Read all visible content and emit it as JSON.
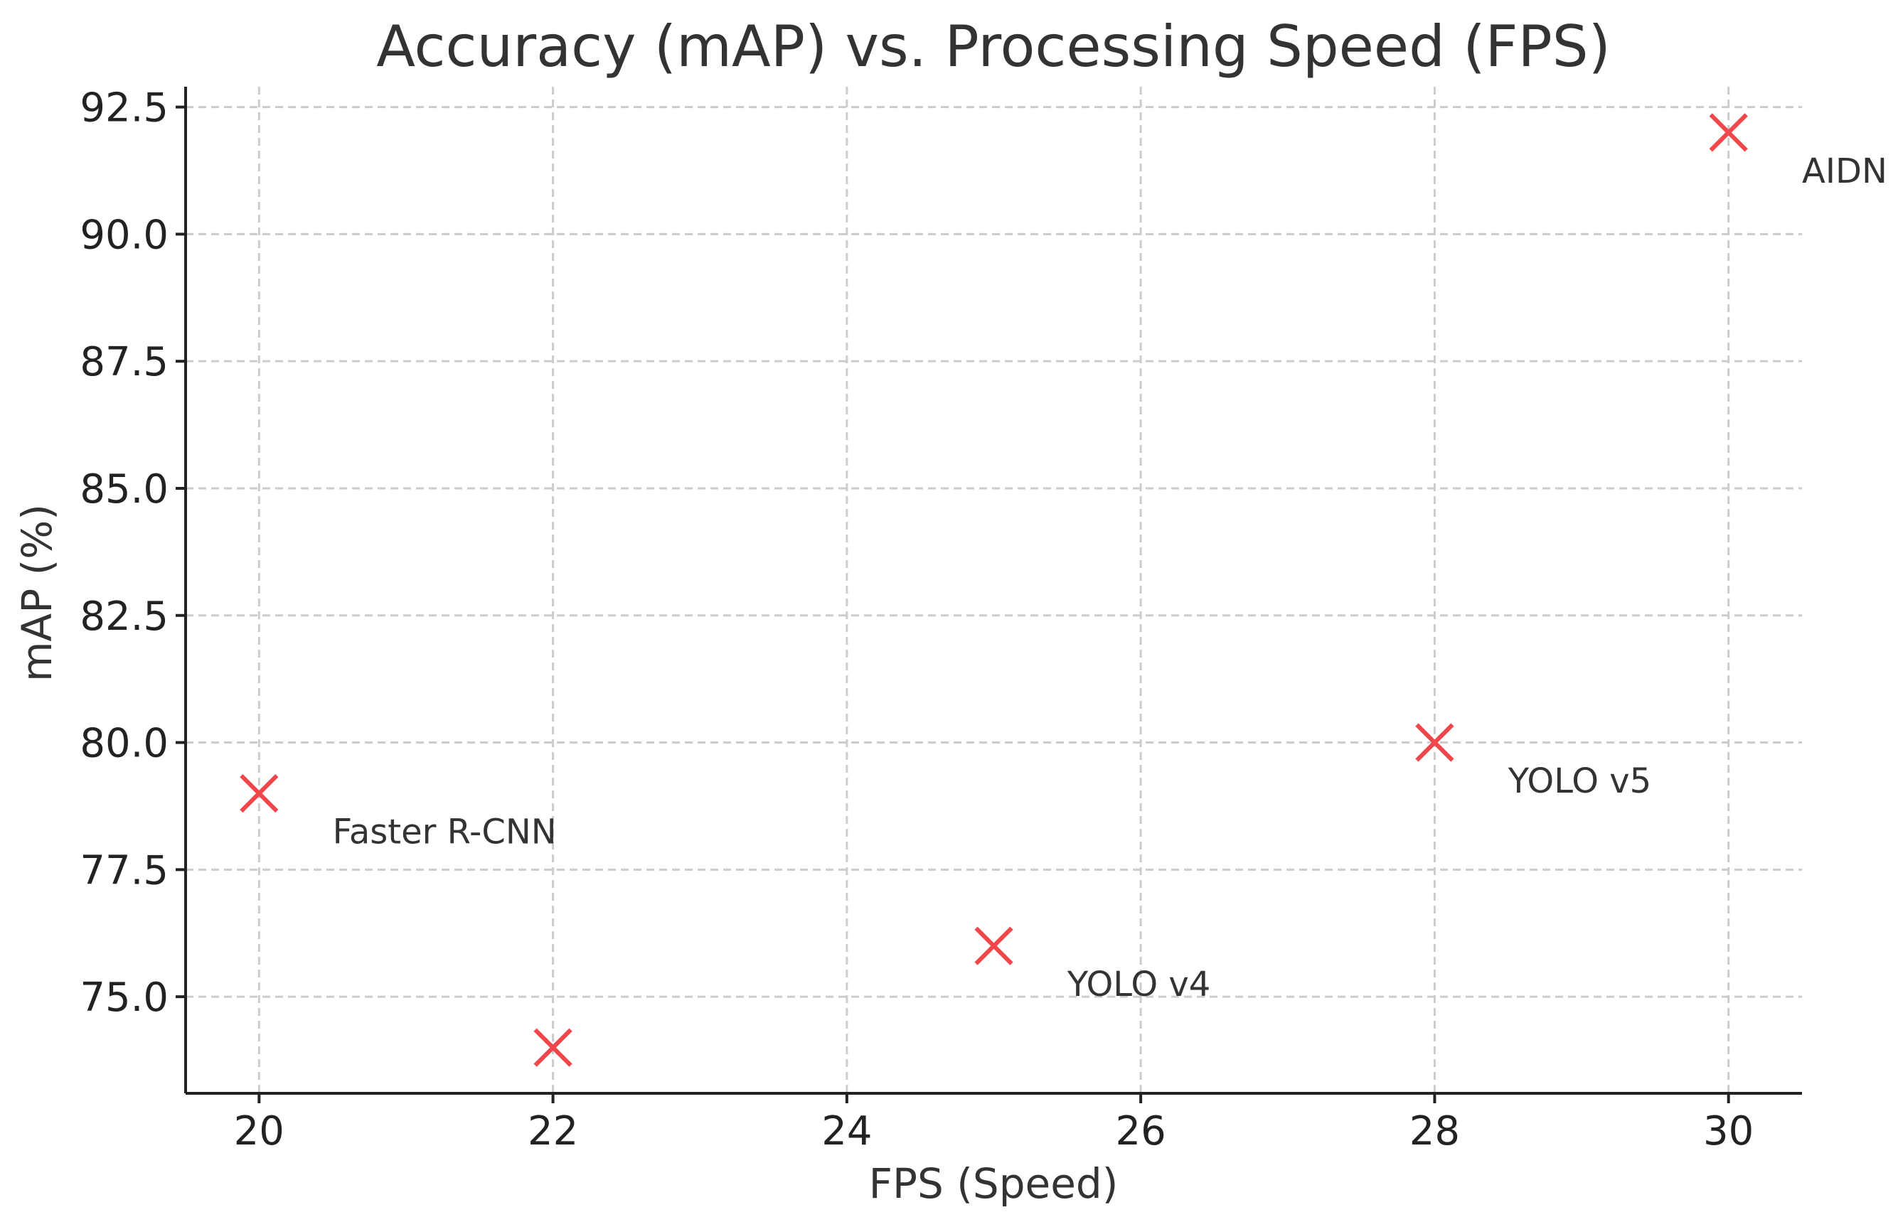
{
  "chart_data": {
    "type": "scatter",
    "title": "Accuracy (mAP) vs. Processing Speed (FPS)",
    "xlabel": "FPS (Speed)",
    "ylabel": "mAP (%)",
    "xlim": [
      19.5,
      30.5
    ],
    "ylim": [
      73.1,
      92.9
    ],
    "xticks": [
      20,
      22,
      24,
      26,
      28,
      30
    ],
    "xtick_labels": [
      "20",
      "22",
      "24",
      "26",
      "28",
      "30"
    ],
    "yticks": [
      75.0,
      77.5,
      80.0,
      82.5,
      85.0,
      87.5,
      90.0,
      92.5
    ],
    "ytick_labels": [
      "75.0",
      "77.5",
      "80.0",
      "82.5",
      "85.0",
      "87.5",
      "90.0",
      "92.5"
    ],
    "grid": true,
    "marker": "x",
    "marker_color": "#f0474c",
    "points": [
      {
        "x": 20,
        "y": 79,
        "label": "Faster R-CNN"
      },
      {
        "x": 22,
        "y": 74,
        "label": ""
      },
      {
        "x": 25,
        "y": 76,
        "label": "YOLO v4"
      },
      {
        "x": 28,
        "y": 80,
        "label": "YOLO v5"
      },
      {
        "x": 30,
        "y": 92,
        "label": "AIDN"
      }
    ],
    "label_offset": {
      "dx": 0.5,
      "dy": -0.75
    }
  }
}
